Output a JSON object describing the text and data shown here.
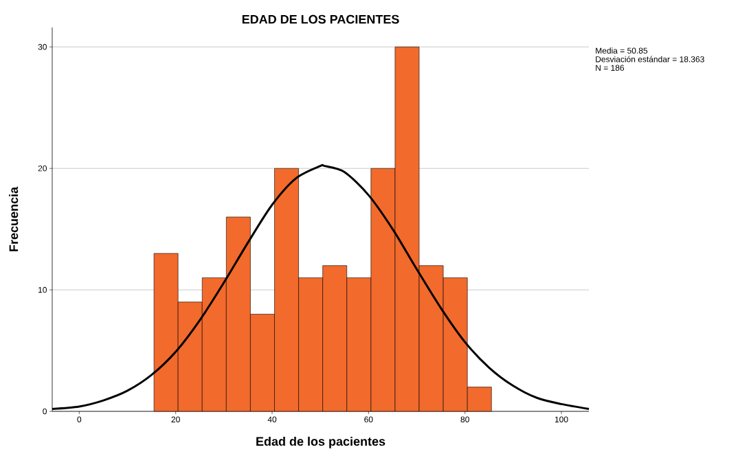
{
  "chart_data": {
    "type": "histogram",
    "title": "EDAD DE LOS PACIENTES",
    "xlabel": "Edad de los pacientes",
    "ylabel": "Frecuencia",
    "series": [
      {
        "color": "#f26a2c",
        "bins": [
          15.5,
          20.5,
          25.5,
          30.5,
          35.5,
          40.5,
          45.5,
          50.5,
          55.5,
          60.5,
          65.5,
          70.5,
          75.5,
          80.5,
          85.5
        ],
        "values": [
          13,
          9,
          11,
          16,
          8,
          20,
          11,
          12,
          11,
          20,
          30,
          12,
          11,
          2
        ]
      },
      {
        "type": "line",
        "color": "#000000",
        "x": [
          -5.6,
          0,
          5,
          10,
          15,
          20,
          25,
          30,
          35,
          40,
          45,
          50,
          50.85,
          55,
          60,
          65,
          70,
          75,
          80,
          85,
          90,
          95,
          100,
          105.7
        ],
        "values": [
          0.2,
          0.4,
          0.9,
          1.7,
          3.0,
          4.9,
          7.5,
          10.6,
          13.9,
          17.0,
          19.2,
          20.2,
          20.2,
          19.7,
          17.8,
          15.0,
          11.7,
          8.5,
          5.7,
          3.6,
          2.1,
          1.1,
          0.6,
          0.2
        ]
      }
    ],
    "xlim": [
      -5.6,
      105.7
    ],
    "ylim": [
      0,
      31.6
    ],
    "xticks": [
      0,
      20,
      40,
      60,
      80,
      100
    ],
    "yticks": [
      0,
      10,
      20,
      30
    ],
    "grid": "y",
    "line_style": "solid",
    "marker": "none",
    "annotations": [
      "Media = 50.85",
      "Desviación estándar = 18.363",
      "N = 186"
    ]
  }
}
